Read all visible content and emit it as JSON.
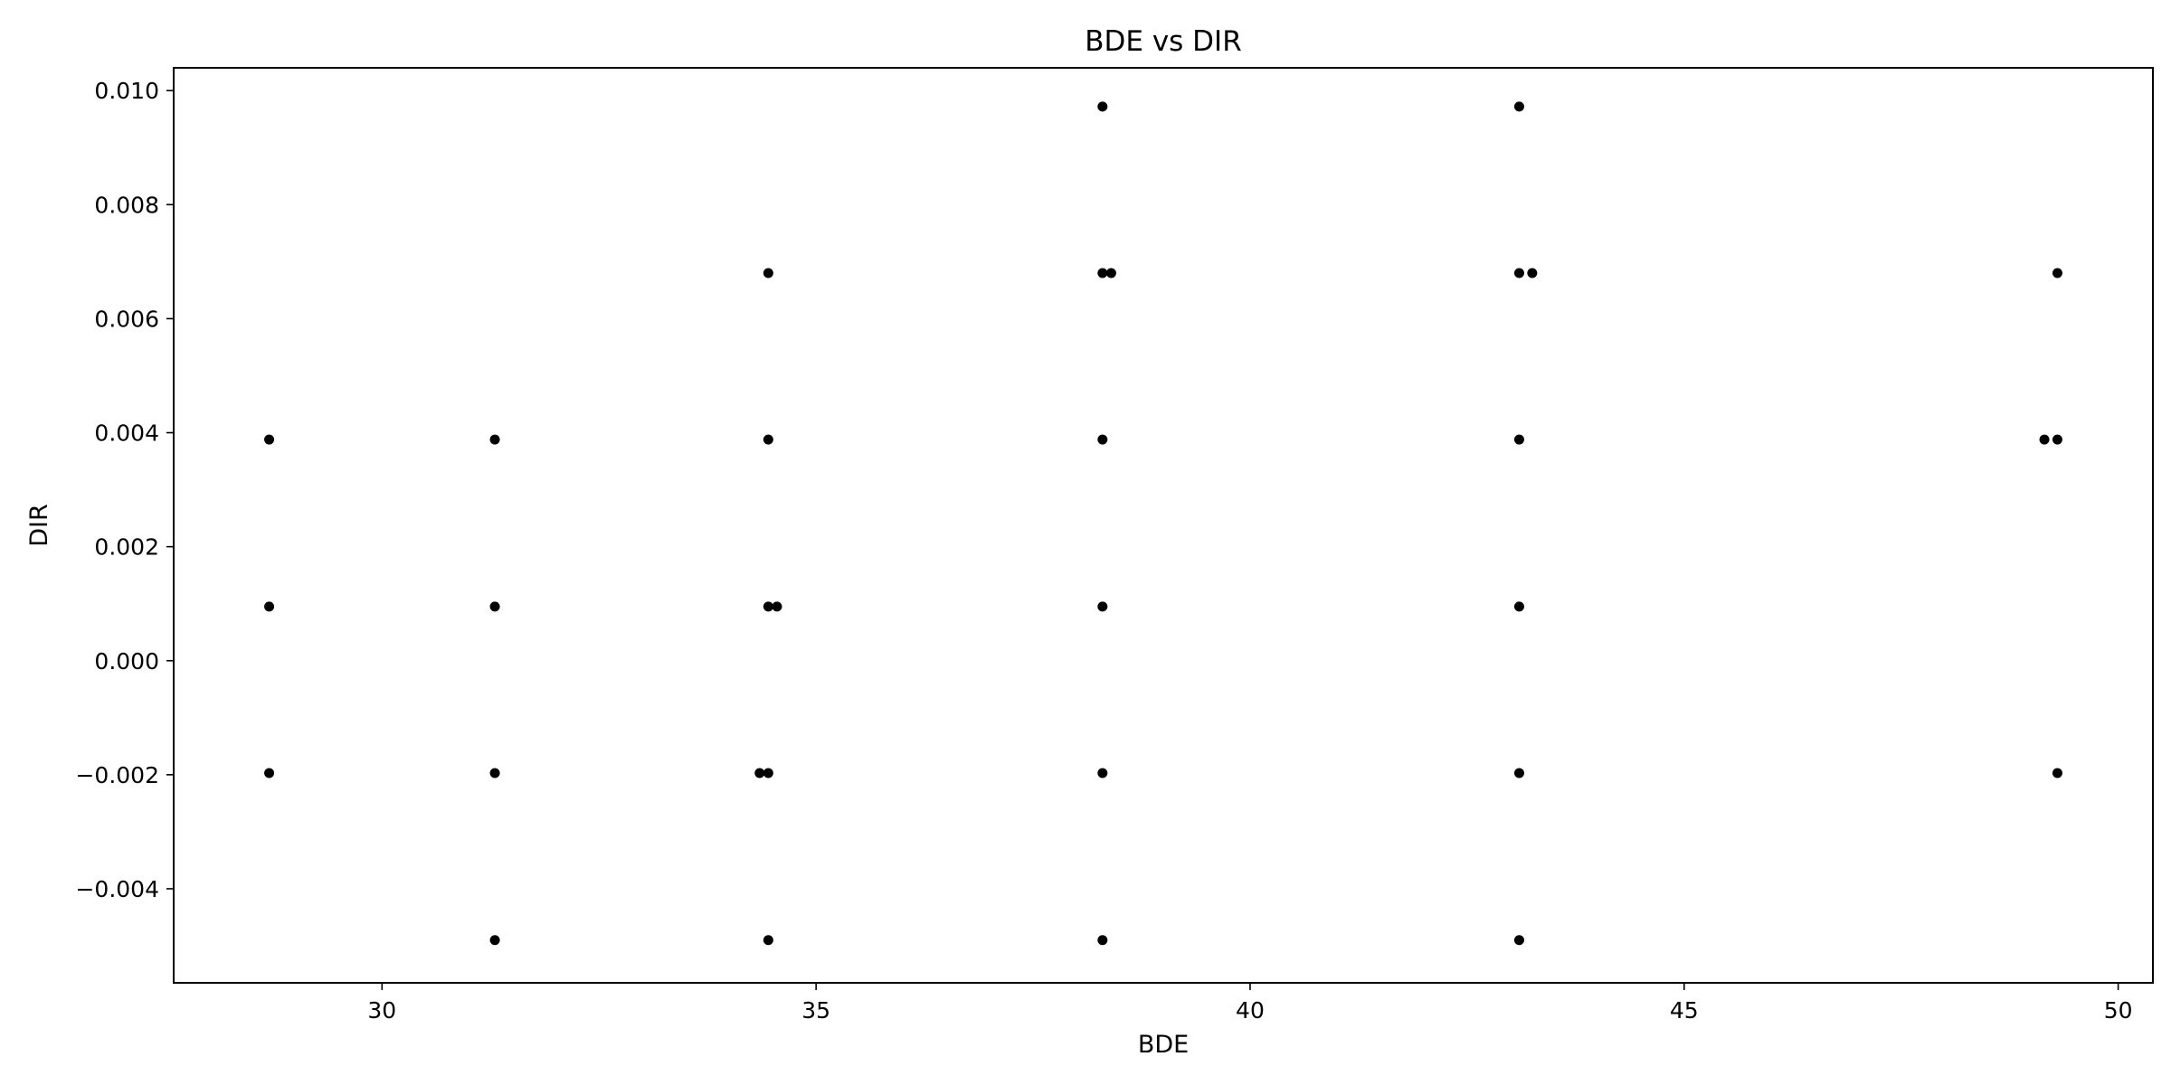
{
  "chart_data": {
    "type": "scatter",
    "title": "BDE vs DIR",
    "xlabel": "BDE",
    "ylabel": "DIR",
    "xlim": [
      27.6,
      50.4
    ],
    "ylim": [
      -0.00565,
      0.0104
    ],
    "xticks": [
      30,
      35,
      40,
      45,
      50
    ],
    "xtick_labels": [
      "30",
      "35",
      "40",
      "45",
      "50"
    ],
    "yticks": [
      -0.004,
      -0.002,
      0.0,
      0.002,
      0.004,
      0.006,
      0.008,
      0.01
    ],
    "ytick_labels": [
      "−0.004",
      "−0.002",
      "0.000",
      "0.002",
      "0.004",
      "0.006",
      "0.008",
      "0.010"
    ],
    "grid": false,
    "marker_color": "#000000",
    "series": [
      {
        "name": "BDE vs DIR",
        "points": [
          [
            28.7,
            0.00388
          ],
          [
            28.7,
            0.00095
          ],
          [
            28.7,
            -0.00197
          ],
          [
            31.3,
            0.00388
          ],
          [
            31.3,
            0.00095
          ],
          [
            31.3,
            -0.00197
          ],
          [
            31.3,
            -0.0049
          ],
          [
            34.35,
            -0.00197
          ],
          [
            34.45,
            0.0068
          ],
          [
            34.45,
            0.00388
          ],
          [
            34.45,
            0.00095
          ],
          [
            34.45,
            -0.00197
          ],
          [
            34.45,
            -0.0049
          ],
          [
            34.55,
            0.00095
          ],
          [
            38.3,
            0.00972
          ],
          [
            38.3,
            0.0068
          ],
          [
            38.3,
            0.00388
          ],
          [
            38.3,
            0.00095
          ],
          [
            38.3,
            -0.00197
          ],
          [
            38.3,
            -0.0049
          ],
          [
            38.4,
            0.0068
          ],
          [
            43.1,
            0.00972
          ],
          [
            43.1,
            0.0068
          ],
          [
            43.1,
            0.00388
          ],
          [
            43.1,
            0.00095
          ],
          [
            43.1,
            -0.00197
          ],
          [
            43.1,
            -0.0049
          ],
          [
            43.25,
            0.0068
          ],
          [
            49.15,
            0.00388
          ],
          [
            49.3,
            0.0068
          ],
          [
            49.3,
            0.00388
          ],
          [
            49.3,
            -0.00197
          ]
        ]
      }
    ]
  }
}
